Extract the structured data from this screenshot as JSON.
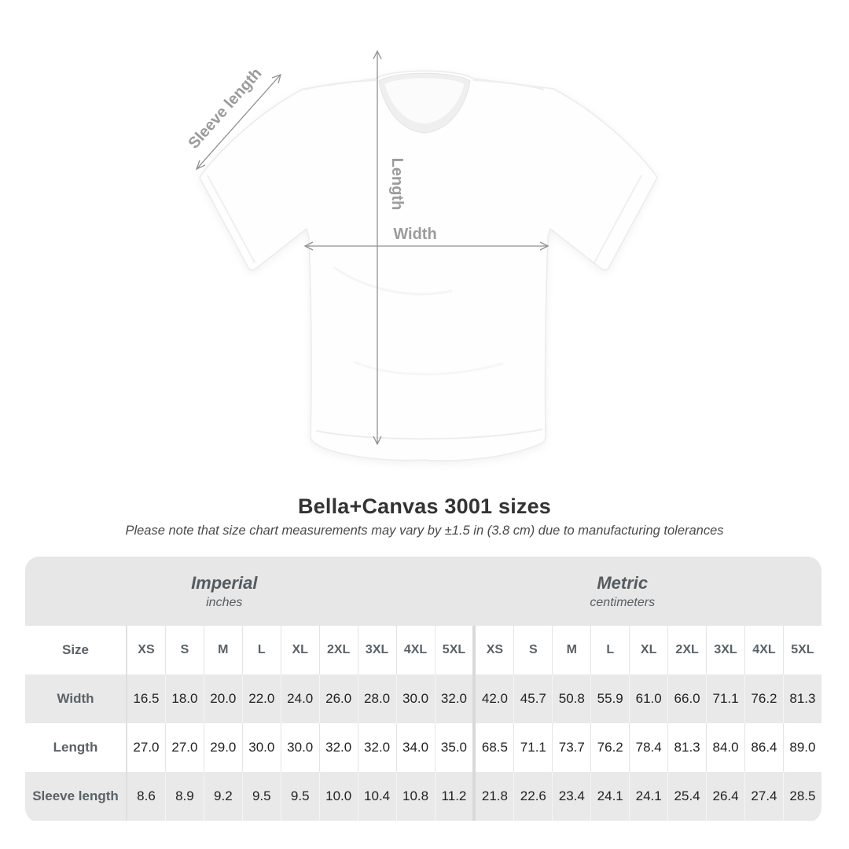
{
  "title": "Bella+Canvas 3001 sizes",
  "subtitle": "Please note that size chart measurements may vary by ±1.5 in (3.8 cm) due to manufacturing tolerances",
  "figure": {
    "labels": {
      "sleeve": "Sleeve length",
      "length": "Length",
      "width": "Width"
    },
    "arrow_color": "#909090",
    "label_color": "#9b9b9b"
  },
  "table": {
    "unit_groups": [
      {
        "name": "Imperial",
        "unit": "inches"
      },
      {
        "name": "Metric",
        "unit": "centimeters"
      }
    ],
    "size_label": "Size",
    "sizes": [
      "XS",
      "S",
      "M",
      "L",
      "XL",
      "2XL",
      "3XL",
      "4XL",
      "5XL"
    ],
    "divider_color": "#d9d9d9",
    "header_bg": "#e7e7e7",
    "alt_row_bg": "#e9e9e9",
    "rows": [
      {
        "label": "Width",
        "imperial_display": [
          "16.5",
          "18.0",
          "20.0",
          "22.0",
          "24.0",
          "26.0",
          "28.0",
          "30.0",
          "32.0"
        ],
        "metric_display": [
          "42.0",
          "45.7",
          "50.8",
          "55.9",
          "61.0",
          "66.0",
          "71.1",
          "76.2",
          "81.3"
        ]
      },
      {
        "label": "Length",
        "imperial_display": [
          "27.0",
          "27.0",
          "29.0",
          "30.0",
          "30.0",
          "32.0",
          "32.0",
          "34.0",
          "35.0"
        ],
        "metric_display": [
          "68.5",
          "71.1",
          "73.7",
          "76.2",
          "78.4",
          "81.3",
          "84.0",
          "86.4",
          "89.0"
        ]
      },
      {
        "label": "Sleeve length",
        "imperial_display": [
          "8.6",
          "8.9",
          "9.2",
          "9.5",
          "9.5",
          "10.0",
          "10.4",
          "10.8",
          "11.2"
        ],
        "metric_display": [
          "21.8",
          "22.6",
          "23.4",
          "24.1",
          "24.1",
          "25.4",
          "26.4",
          "27.4",
          "28.5"
        ]
      }
    ]
  },
  "chart_data": {
    "type": "table",
    "title": "Bella+Canvas 3001 sizes",
    "note": "Please note that size chart measurements may vary by ±1.5 in (3.8 cm) due to manufacturing tolerances",
    "unit_groups": [
      "Imperial (inches)",
      "Metric (centimeters)"
    ],
    "columns": [
      "XS",
      "S",
      "M",
      "L",
      "XL",
      "2XL",
      "3XL",
      "4XL",
      "5XL"
    ],
    "rows": [
      {
        "label": "Width",
        "imperial": [
          16.5,
          18.0,
          20.0,
          22.0,
          24.0,
          26.0,
          28.0,
          30.0,
          32.0
        ],
        "metric": [
          42.0,
          45.7,
          50.8,
          55.9,
          61.0,
          66.0,
          71.1,
          76.2,
          81.3
        ]
      },
      {
        "label": "Length",
        "imperial": [
          27.0,
          27.0,
          29.0,
          30.0,
          30.0,
          32.0,
          32.0,
          34.0,
          35.0
        ],
        "metric": [
          68.5,
          71.1,
          73.7,
          76.2,
          78.4,
          81.3,
          84.0,
          86.4,
          89.0
        ]
      },
      {
        "label": "Sleeve length",
        "imperial": [
          8.6,
          8.9,
          9.2,
          9.5,
          9.5,
          10.0,
          10.4,
          10.8,
          11.2
        ],
        "metric": [
          21.8,
          22.6,
          23.4,
          24.1,
          24.1,
          25.4,
          26.4,
          27.4,
          28.5
        ]
      }
    ]
  }
}
